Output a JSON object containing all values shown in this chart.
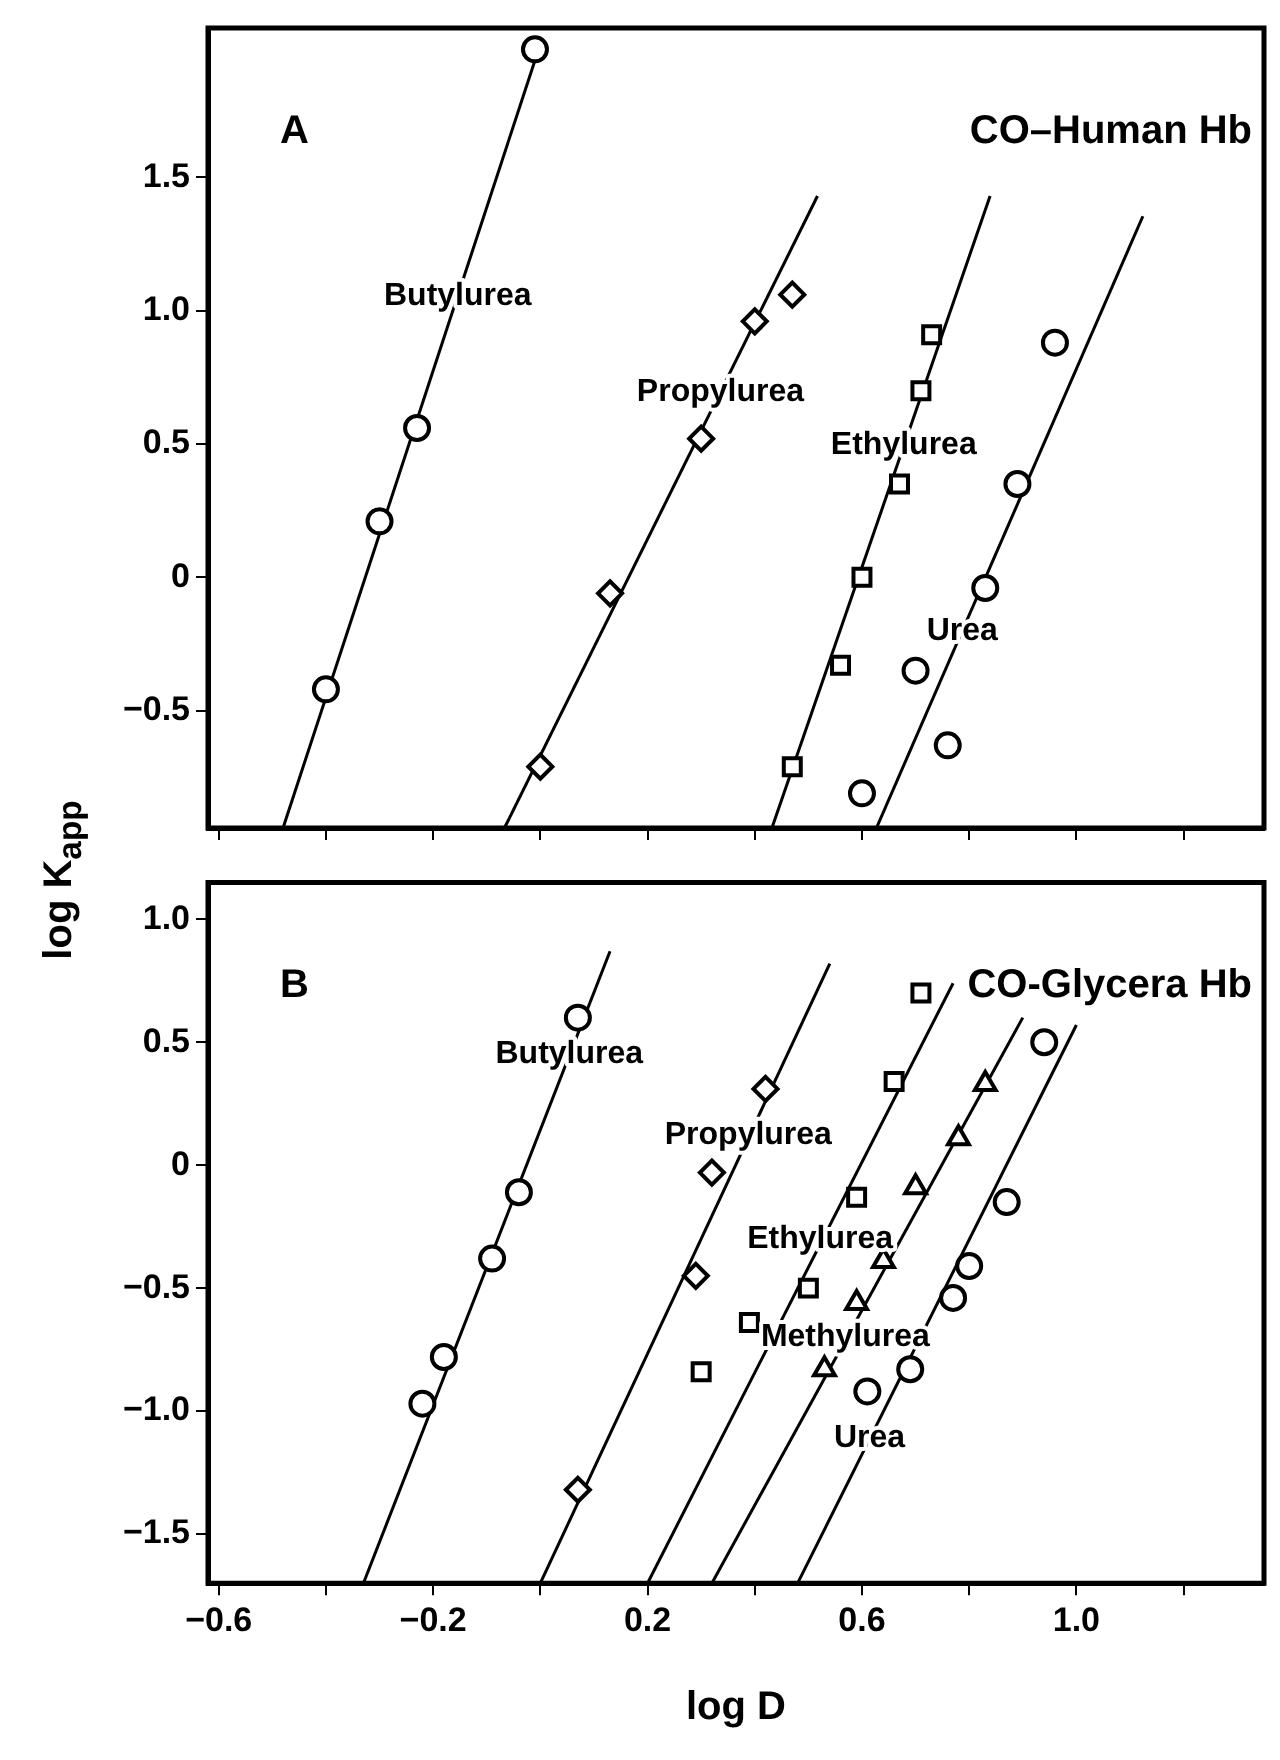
{
  "chart_data": [
    {
      "type": "scatter",
      "ylabel": "log K$_{app}$",
      "xlim": [
        -0.62,
        1.35
      ],
      "ylim": [
        -0.94,
        2.06
      ],
      "xticks": [
        {
          "value": -0.6,
          "label": null
        },
        {
          "value": -0.4,
          "label": null
        },
        {
          "value": -0.2,
          "label": null
        },
        {
          "value": 0,
          "label": null
        },
        {
          "value": 0.2,
          "label": null
        },
        {
          "value": 0.4,
          "label": null
        },
        {
          "value": 0.6,
          "label": null
        },
        {
          "value": 0.8,
          "label": null
        },
        {
          "value": 1.0,
          "label": null
        },
        {
          "value": 1.2,
          "label": null
        }
      ],
      "yticks": [
        {
          "value": -0.5,
          "label": "−0.5"
        },
        0,
        {
          "value": 0.5,
          "label": "0.5"
        },
        {
          "value": 1.0,
          "label": "1.0"
        },
        {
          "value": 1.5,
          "label": "1.5"
        }
      ],
      "tick_labels": "y",
      "grid": false,
      "legend": false,
      "annotations": [
        "A",
        "CO–Human Hb",
        {
          "text": "Butylurea",
          "x": -0.154,
          "y": 1.055
        },
        {
          "text": "Propylurea",
          "x": 0.336,
          "y": 0.695
        },
        {
          "text": "Ethylurea",
          "x": 0.678,
          "y": 0.495
        },
        {
          "text": "Urea",
          "x": 0.787,
          "y": -0.203
        }
      ],
      "series": [
        {
          "type": "scatter",
          "marker": "circle",
          "color": "#000000",
          "x": [
            -0.4,
            -0.3,
            -0.23,
            -0.01
          ],
          "values": [
            -0.42,
            0.21,
            0.56,
            1.98
          ]
        },
        {
          "type": "scatter",
          "marker": "diamond",
          "color": "#000000",
          "x": [
            0.0,
            0.13,
            0.3,
            0.4,
            0.47
          ],
          "values": [
            -0.71,
            -0.06,
            0.52,
            0.96,
            1.06
          ]
        },
        {
          "type": "scatter",
          "marker": "square",
          "color": "#000000",
          "x": [
            0.47,
            0.56,
            0.6,
            0.67,
            0.71,
            0.73
          ],
          "values": [
            -0.71,
            -0.33,
            0.0,
            0.35,
            0.7,
            0.91
          ]
        },
        {
          "type": "scatter",
          "marker": "circle",
          "color": "#000000",
          "x": [
            0.6,
            0.7,
            0.76,
            0.83,
            0.89,
            0.96
          ],
          "values": [
            -0.81,
            -0.35,
            -0.63,
            -0.04,
            0.35,
            0.88
          ]
        },
        {
          "type": "line",
          "marker": "none",
          "color": "#000000",
          "x": [
            -0.48,
            0.0
          ],
          "values": [
            -0.94,
            2.0
          ]
        },
        {
          "type": "line",
          "marker": "none",
          "color": "#000000",
          "x": [
            -0.067,
            0.517
          ],
          "values": [
            -0.94,
            1.43
          ]
        },
        {
          "type": "line",
          "marker": "none",
          "color": "#000000",
          "x": [
            0.432,
            0.839
          ],
          "values": [
            -0.94,
            1.43
          ]
        },
        {
          "type": "line",
          "marker": "none",
          "color": "#000000",
          "x": [
            0.627,
            1.124
          ],
          "values": [
            -0.94,
            1.354
          ]
        }
      ]
    },
    {
      "type": "scatter",
      "xlabel": "log D",
      "xlim": [
        -0.62,
        1.35
      ],
      "ylim": [
        -1.7,
        1.15
      ],
      "xticks": [
        {
          "value": -0.6,
          "label": "−0.6"
        },
        {
          "value": -0.4,
          "label": null
        },
        {
          "value": -0.2,
          "label": "−0.2"
        },
        {
          "value": 0,
          "label": null
        },
        {
          "value": 0.2,
          "label": "0.2"
        },
        {
          "value": 0.4,
          "label": null
        },
        {
          "value": 0.6,
          "label": "0.6"
        },
        {
          "value": 0.8,
          "label": null
        },
        {
          "value": 1.0,
          "label": "1.0"
        },
        {
          "value": 1.2,
          "label": null
        }
      ],
      "yticks": [
        {
          "value": -1.5,
          "label": "−1.5"
        },
        {
          "value": -1.0,
          "label": "−1.0"
        },
        {
          "value": -0.5,
          "label": "−0.5"
        },
        0,
        {
          "value": 0.5,
          "label": "0.5"
        },
        {
          "value": 1.0,
          "label": "1.0"
        }
      ],
      "grid": false,
      "legend": false,
      "annotations": [
        "B",
        "CO-Glycera Hb",
        {
          "text": "Butylurea",
          "x": 0.054,
          "y": 0.45
        },
        {
          "text": "Propylurea",
          "x": 0.388,
          "y": 0.12
        },
        {
          "text": "Ethylurea",
          "x": 0.522,
          "y": -0.3
        },
        {
          "text": "Methylurea",
          "x": 0.569,
          "y": -0.7
        },
        {
          "text": "Urea",
          "x": 0.614,
          "y": -1.11
        }
      ],
      "series": [
        {
          "type": "scatter",
          "marker": "circle",
          "color": "#000000",
          "x": [
            -0.22,
            -0.18,
            -0.09,
            -0.04,
            0.07
          ],
          "values": [
            -0.97,
            -0.78,
            -0.38,
            -0.11,
            0.6
          ]
        },
        {
          "type": "scatter",
          "marker": "diamond",
          "color": "#000000",
          "x": [
            0.07,
            0.29,
            0.32,
            0.42
          ],
          "values": [
            -1.32,
            -0.45,
            -0.03,
            0.31
          ]
        },
        {
          "type": "scatter",
          "marker": "square",
          "color": "#000000",
          "x": [
            0.3,
            0.39,
            0.5,
            0.59,
            0.66,
            0.71
          ],
          "values": [
            -0.84,
            -0.64,
            -0.5,
            -0.13,
            0.34,
            0.7
          ]
        },
        {
          "type": "scatter",
          "marker": "triangle",
          "color": "#000000",
          "x": [
            0.53,
            0.59,
            0.64,
            0.7,
            0.78,
            0.83
          ],
          "values": [
            -0.83,
            -0.56,
            -0.39,
            -0.09,
            0.11,
            0.33
          ]
        },
        {
          "type": "scatter",
          "marker": "circle",
          "color": "#000000",
          "x": [
            0.61,
            0.69,
            0.77,
            0.8,
            0.87,
            0.94
          ],
          "values": [
            -0.92,
            -0.83,
            -0.54,
            -0.41,
            -0.15,
            0.5
          ]
        },
        {
          "type": "line",
          "marker": "none",
          "color": "#000000",
          "x": [
            -0.33,
            0.13
          ],
          "values": [
            -1.7,
            0.87
          ]
        },
        {
          "type": "line",
          "marker": "none",
          "color": "#000000",
          "x": [
            0.0,
            0.54
          ],
          "values": [
            -1.7,
            0.82
          ]
        },
        {
          "type": "line",
          "marker": "none",
          "color": "#000000",
          "x": [
            0.2,
            0.77
          ],
          "values": [
            -1.7,
            0.74
          ]
        },
        {
          "type": "line",
          "marker": "none",
          "color": "#000000",
          "x": [
            0.32,
            0.9
          ],
          "values": [
            -1.7,
            0.6
          ]
        },
        {
          "type": "line",
          "marker": "none",
          "color": "#000000",
          "x": [
            0.48,
            1.0
          ],
          "values": [
            -1.7,
            0.57
          ]
        }
      ]
    }
  ]
}
